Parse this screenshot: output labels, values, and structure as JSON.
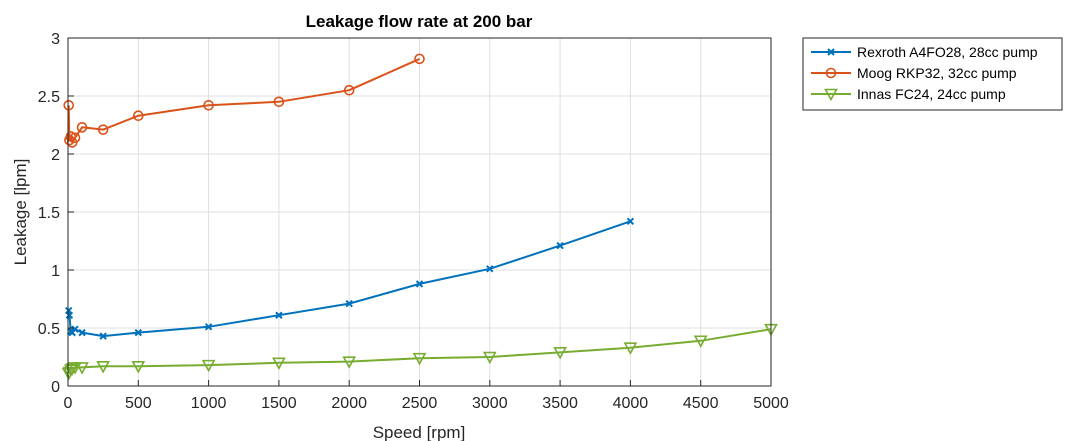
{
  "chart_data": {
    "type": "line",
    "title": "Leakage flow rate at 200 bar",
    "xlabel": "Speed [rpm]",
    "ylabel": "Leakage [lpm]",
    "xlim": [
      0,
      5000
    ],
    "ylim": [
      0,
      3
    ],
    "xticks": [
      0,
      500,
      1000,
      1500,
      2000,
      2500,
      3000,
      3500,
      4000,
      4500,
      5000
    ],
    "yticks": [
      0,
      0.5,
      1,
      1.5,
      2,
      2.5,
      3
    ],
    "xtick_labels": [
      "0",
      "500",
      "1000",
      "1500",
      "2000",
      "2500",
      "3000",
      "3500",
      "4000",
      "4500",
      "5000"
    ],
    "ytick_labels": [
      "0",
      "0.5",
      "1",
      "1.5",
      "2",
      "2.5",
      "3"
    ],
    "grid": true,
    "legend_position": "outside-top-right",
    "series": [
      {
        "name": "Rexroth A4FO28, 28cc pump",
        "color": "#0072BD",
        "marker": "x",
        "x": [
          5,
          10,
          20,
          30,
          50,
          100,
          250,
          500,
          1000,
          1500,
          2000,
          2500,
          3000,
          3500,
          4000
        ],
        "y": [
          0.65,
          0.61,
          0.47,
          0.46,
          0.49,
          0.46,
          0.43,
          0.46,
          0.51,
          0.61,
          0.71,
          0.88,
          1.01,
          1.21,
          1.42
        ]
      },
      {
        "name": "Moog RKP32, 32cc pump",
        "color": "#D95319",
        "marker": "o",
        "x": [
          5,
          10,
          20,
          30,
          50,
          100,
          250,
          500,
          1000,
          1500,
          2000,
          2500
        ],
        "y": [
          2.42,
          2.12,
          2.15,
          2.1,
          2.14,
          2.23,
          2.21,
          2.33,
          2.42,
          2.45,
          2.55,
          2.82
        ]
      },
      {
        "name": "Innas FC24, 24cc pump",
        "color": "#77AC30",
        "marker": "v",
        "x": [
          5,
          10,
          20,
          30,
          50,
          100,
          250,
          500,
          1000,
          1500,
          2000,
          2500,
          3000,
          3500,
          4000,
          4500,
          5000
        ],
        "y": [
          0.11,
          0.12,
          0.14,
          0.15,
          0.16,
          0.16,
          0.17,
          0.17,
          0.18,
          0.2,
          0.21,
          0.24,
          0.25,
          0.29,
          0.33,
          0.39,
          0.49
        ]
      }
    ]
  }
}
